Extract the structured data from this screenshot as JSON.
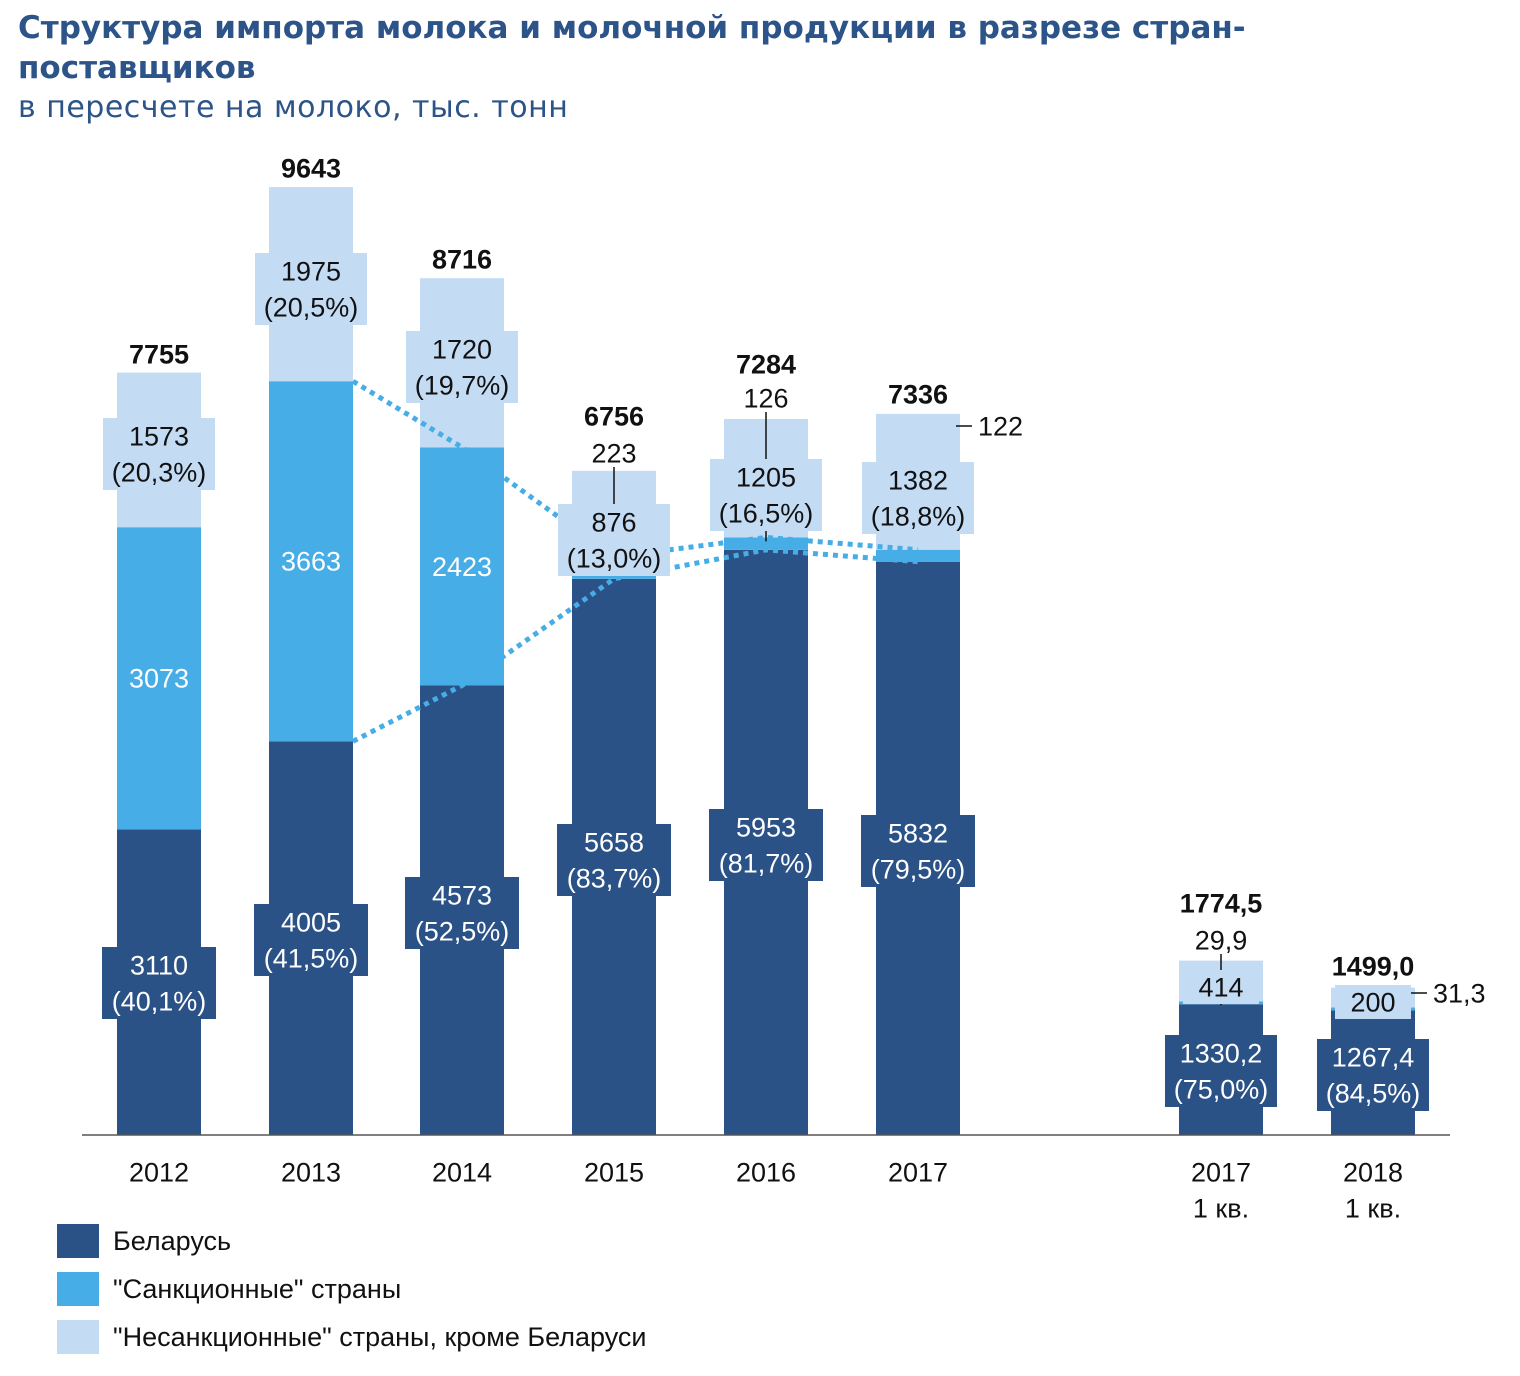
{
  "title": "Структура импорта молока и молочной продукции в разрезе стран-поставщиков",
  "subtitle": "в пересчете на молоко, тыс. тонн",
  "colors": {
    "belarus": "#2b5287",
    "sanction": "#47ade6",
    "nonsanction": "#c4dbf4",
    "title": "#2c5489",
    "dotted": "#47ade6"
  },
  "legend": [
    {
      "series": "belarus",
      "label": "Беларусь"
    },
    {
      "series": "sanction",
      "label": "\"Санкционные\" страны"
    },
    {
      "series": "nonsanction",
      "label": "\"Несанкционные\" страны, кроме Беларуси"
    }
  ],
  "chart_data": {
    "type": "bar",
    "stacked": true,
    "title": "Структура импорта молока и молочной продукции в разрезе стран-поставщиков",
    "subtitle": "в пересчете на молоко, тыс. тонн",
    "categories": [
      "2012",
      "2013",
      "2014",
      "2015",
      "2016",
      "2017",
      "2017\n1 кв.",
      "2018\n1 кв."
    ],
    "series": [
      {
        "key": "belarus",
        "name": "Беларусь",
        "values": [
          3110,
          4005,
          4573,
          5658,
          5953,
          5832,
          1330.2,
          1267.4
        ],
        "labels": [
          "3110\n(40,1%)",
          "4005\n(41,5%)",
          "4573\n(52,5%)",
          "5658\n(83,7%)",
          "5953\n(81,7%)",
          "5832\n(79,5%)",
          "1330,2\n(75,0%)",
          "1267,4\n(84,5%)"
        ]
      },
      {
        "key": "sanction",
        "name": "\"Санкционные\" страны",
        "values": [
          3073,
          3663,
          2423,
          223,
          126,
          122,
          29.9,
          31.3
        ],
        "labels": [
          "3073",
          "3663",
          "2423",
          "223",
          "126",
          "122",
          "29,9",
          "31,3"
        ]
      },
      {
        "key": "nonsanction",
        "name": "\"Несанкционные\" страны, кроме Беларуси",
        "values": [
          1573,
          1975,
          1720,
          876,
          1205,
          1382,
          414,
          200
        ],
        "labels": [
          "1573\n(20,3%)",
          "1975\n(20,5%)",
          "1720\n(19,7%)",
          "876\n(13,0%)",
          "1205\n(16,5%)",
          "1382\n(18,8%)",
          "414",
          "200"
        ]
      }
    ],
    "totals": [
      7755,
      9643,
      8716,
      6756,
      7284,
      7336,
      1774.5,
      1499.0
    ],
    "total_labels": [
      "7755",
      "9643",
      "8716",
      "6756",
      "7284",
      "7336",
      "1774,5",
      "1499,0"
    ],
    "legend_position": "bottom-left",
    "grid": false
  }
}
